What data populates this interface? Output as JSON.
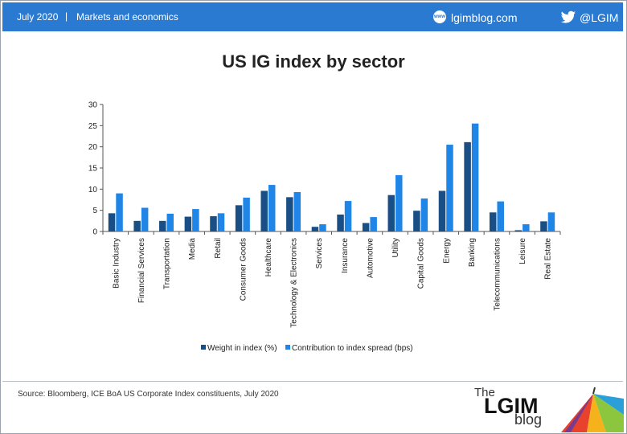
{
  "header": {
    "date": "July 2020",
    "separator": "|",
    "topic": "Markets and economics",
    "site_icon_text": "www",
    "site": "lgimblog.com",
    "twitter_handle": "@LGIM"
  },
  "footer": {
    "source": "Source: Bloomberg, ICE BoA US Corporate Index constituents, July 2020",
    "logo_the": "The",
    "logo_lgim": "LGIM",
    "logo_blog": "blog"
  },
  "colors": {
    "topbar": "#2a7ad2",
    "series_weight": "#1a4f86",
    "series_contribution": "#1f86e8"
  },
  "chart_data": {
    "type": "bar",
    "title": "US IG index by sector",
    "xlabel": "",
    "ylabel": "",
    "ylim": [
      0,
      30
    ],
    "yticks": [
      0,
      5,
      10,
      15,
      20,
      25,
      30
    ],
    "grid": false,
    "legend_position": "bottom",
    "categories": [
      "Basic Industry",
      "Financial Services",
      "Transportation",
      "Media",
      "Retail",
      "Consumer Goods",
      "Healthcare",
      "Technology & Electronics",
      "Services",
      "Insurance",
      "Automotive",
      "Utility",
      "Capital Goods",
      "Energy",
      "Banking",
      "Telecommunications",
      "Leisure",
      "Real Estate"
    ],
    "series": [
      {
        "name": "Weight in index (%)",
        "values": [
          4.3,
          2.5,
          2.5,
          3.5,
          3.6,
          6.2,
          9.6,
          8.1,
          1.1,
          4.0,
          2.0,
          8.6,
          4.9,
          9.6,
          21.1,
          4.5,
          0.3,
          2.4
        ]
      },
      {
        "name": "Contribution to index spread (bps)",
        "values": [
          9.0,
          5.6,
          4.2,
          5.3,
          4.3,
          8.0,
          11.0,
          9.3,
          1.7,
          7.2,
          3.4,
          13.3,
          7.8,
          20.5,
          25.5,
          7.1,
          1.7,
          4.5
        ]
      }
    ]
  }
}
